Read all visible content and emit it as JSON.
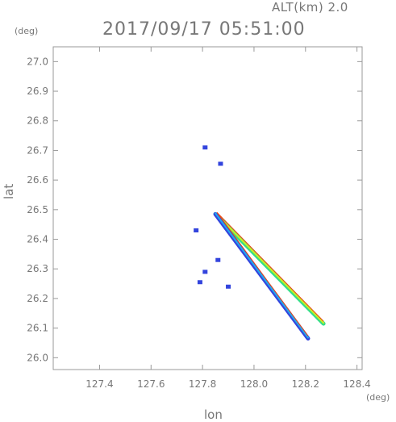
{
  "header": {
    "altitude_label": "ALT(km) 2.0",
    "datetime": "2017/09/17 05:51:00"
  },
  "chart_data": {
    "type": "scatter",
    "title": "2017/09/17 05:51:00",
    "subtitle": "ALT(km) 2.0",
    "xlabel": "lon",
    "ylabel": "lat",
    "x_unit": "(deg)",
    "y_unit": "(deg)",
    "xlim": [
      127.22,
      128.42
    ],
    "ylim": [
      25.96,
      27.05
    ],
    "x_ticks": [
      127.4,
      127.6,
      127.8,
      128.0,
      128.2,
      128.4
    ],
    "x_tick_labels": [
      "127.4",
      "127.6",
      "127.8",
      "128.0",
      "128.2",
      "128.4"
    ],
    "y_ticks": [
      26.0,
      26.1,
      26.2,
      26.3,
      26.4,
      26.5,
      26.6,
      26.7,
      26.8,
      26.9,
      27.0
    ],
    "y_tick_labels": [
      "26.0",
      "26.1",
      "26.2",
      "26.3",
      "26.4",
      "26.5",
      "26.6",
      "26.7",
      "26.8",
      "26.9",
      "27.0"
    ],
    "grid": false,
    "colors": {
      "low": "#3344dd",
      "mid_low": "#22aaee",
      "mid": "#33dd88",
      "mid_high": "#ccee22",
      "high": "#ee4411"
    },
    "clusters": [
      {
        "lon": 127.81,
        "lat": 26.71
      },
      {
        "lon": 127.87,
        "lat": 26.655
      },
      {
        "lon": 127.775,
        "lat": 26.43
      },
      {
        "lon": 127.86,
        "lat": 26.33
      },
      {
        "lon": 127.81,
        "lat": 26.29
      },
      {
        "lon": 127.79,
        "lat": 26.255
      },
      {
        "lon": 127.9,
        "lat": 26.24
      }
    ],
    "streaks": [
      {
        "name": "",
        "start": {
          "lon": 127.85,
          "lat": 26.485
        },
        "end": {
          "lon": 128.27,
          "lat": 26.115
        },
        "colors": [
          "#33dd88",
          "#ccee22"
        ]
      },
      {
        "name": "",
        "start": {
          "lon": 127.85,
          "lat": 26.485
        },
        "end": {
          "lon": 128.21,
          "lat": 26.065
        },
        "colors": [
          "#3344dd",
          "#22aaee"
        ]
      }
    ]
  }
}
